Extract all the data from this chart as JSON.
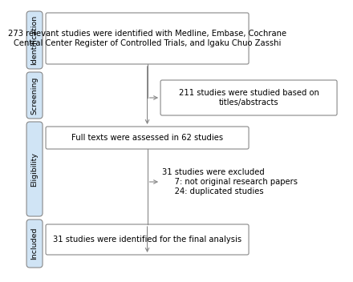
{
  "box1_text": "273 relevant studies were identified with Medline, Embase, Cochrane\nCentral Center Register of Controlled Trials, and Igaku Chuo Zasshi",
  "box2_text": "211 studies were studied based on\ntitles/abstracts",
  "box3_text": "Full texts were assessed in 62 studies",
  "box4_line1": "31 studies were excluded",
  "box4_line2": "     7: not original research papers",
  "box4_line3": "     24: duplicated studies",
  "box5_text": "31 studies were identified for the final analysis",
  "label1": "Identification",
  "label2": "Screening",
  "label3": "Eligibility",
  "label4": "Included",
  "box_fill": "#ffffff",
  "box_edge": "#888888",
  "label_fill": "#d0e4f5",
  "label_edge": "#888888",
  "arrow_color": "#888888",
  "text_color": "#000000",
  "bg_color": "#ffffff",
  "fontsize": 7.2,
  "label_fontsize": 6.8
}
